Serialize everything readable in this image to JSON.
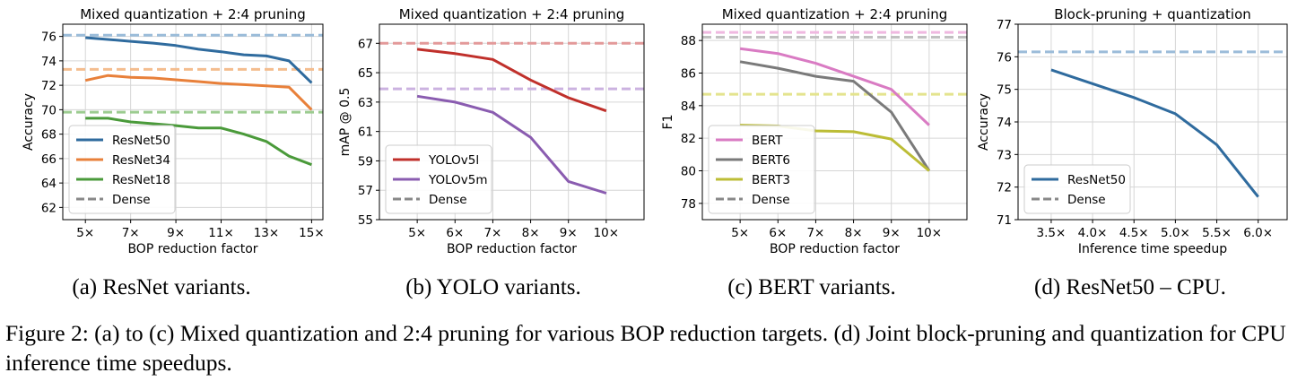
{
  "chart_data": [
    {
      "type": "line",
      "title": "Mixed quantization + 2:4 pruning",
      "xlabel": "BOP reduction factor",
      "ylabel": "Accuracy",
      "xlim": [
        4,
        15.5
      ],
      "ylim": [
        61,
        77
      ],
      "xticks": [
        5,
        7,
        9,
        11,
        13,
        15
      ],
      "xtick_labels": [
        "5×",
        "7×",
        "9×",
        "11×",
        "13×",
        "15×"
      ],
      "yticks": [
        62,
        64,
        66,
        68,
        70,
        72,
        74,
        76
      ],
      "ytick_labels": [
        "62",
        "64",
        "66",
        "68",
        "70",
        "72",
        "74",
        "76"
      ],
      "grid": true,
      "legend_position": "lower-left",
      "series": [
        {
          "name": "ResNet50",
          "color": "#2f6b9e",
          "x": [
            5,
            6,
            7,
            8,
            9,
            10,
            11,
            12,
            13,
            14,
            15
          ],
          "values": [
            75.9,
            75.75,
            75.6,
            75.45,
            75.25,
            74.95,
            74.75,
            74.5,
            74.4,
            74.0,
            72.2
          ]
        },
        {
          "name": "ResNet34",
          "color": "#e8803a",
          "x": [
            5,
            6,
            7,
            8,
            9,
            10,
            11,
            12,
            13,
            14,
            15
          ],
          "values": [
            72.4,
            72.8,
            72.65,
            72.6,
            72.45,
            72.3,
            72.15,
            72.05,
            71.95,
            71.85,
            70.0
          ]
        },
        {
          "name": "ResNet18",
          "color": "#4a9a3a",
          "x": [
            5,
            6,
            7,
            8,
            9,
            10,
            11,
            12,
            13,
            14,
            15
          ],
          "values": [
            69.3,
            69.3,
            69.0,
            68.85,
            68.7,
            68.5,
            68.5,
            68.0,
            67.4,
            66.2,
            65.5
          ]
        }
      ],
      "dense_lines": [
        {
          "value": 76.1,
          "color": "#9bbcd9"
        },
        {
          "value": 73.3,
          "color": "#f4bd8e"
        },
        {
          "value": 69.8,
          "color": "#9ccc90"
        }
      ],
      "dense_legend": {
        "name": "Dense",
        "color": "#888888"
      }
    },
    {
      "type": "line",
      "title": "Mixed quantization + 2:4 pruning",
      "xlabel": "BOP reduction factor",
      "ylabel": "mAP @ 0.5",
      "xlim": [
        4,
        11
      ],
      "ylim": [
        55,
        68.3
      ],
      "xticks": [
        5,
        6,
        7,
        8,
        9,
        10
      ],
      "xtick_labels": [
        "5×",
        "6×",
        "7×",
        "8×",
        "9×",
        "10×"
      ],
      "yticks": [
        55,
        57,
        59,
        61,
        63,
        65,
        67
      ],
      "ytick_labels": [
        "55",
        "57",
        "59",
        "61",
        "63",
        "65",
        "67"
      ],
      "grid": true,
      "legend_position": "lower-left",
      "series": [
        {
          "name": "YOLOv5l",
          "color": "#c0302b",
          "x": [
            5,
            6,
            7,
            8,
            9,
            10
          ],
          "values": [
            66.6,
            66.3,
            65.9,
            64.5,
            63.3,
            62.4
          ]
        },
        {
          "name": "YOLOv5m",
          "color": "#8a5cb0",
          "x": [
            5,
            6,
            7,
            8,
            9,
            10
          ],
          "values": [
            63.4,
            63.0,
            62.3,
            60.6,
            57.6,
            56.8
          ]
        }
      ],
      "dense_lines": [
        {
          "value": 67.0,
          "color": "#e39a9a"
        },
        {
          "value": 63.9,
          "color": "#cbb2e0"
        }
      ],
      "dense_legend": {
        "name": "Dense",
        "color": "#888888"
      }
    },
    {
      "type": "line",
      "title": "Mixed quantization + 2:4 pruning",
      "xlabel": "BOP reduction factor",
      "ylabel": "F1",
      "xlim": [
        4,
        11
      ],
      "ylim": [
        77,
        89
      ],
      "xticks": [
        5,
        6,
        7,
        8,
        9,
        10
      ],
      "xtick_labels": [
        "5×",
        "6×",
        "7×",
        "8×",
        "9×",
        "10×"
      ],
      "yticks": [
        78,
        80,
        82,
        84,
        86,
        88
      ],
      "ytick_labels": [
        "78",
        "80",
        "82",
        "84",
        "86",
        "88"
      ],
      "grid": true,
      "legend_position": "lower-left",
      "series": [
        {
          "name": "BERT",
          "color": "#d97bc3",
          "x": [
            5,
            6,
            7,
            8,
            9,
            10
          ],
          "values": [
            87.5,
            87.2,
            86.6,
            85.8,
            85.0,
            82.8
          ]
        },
        {
          "name": "BERT6",
          "color": "#7a7a7a",
          "x": [
            5,
            6,
            7,
            8,
            9,
            10
          ],
          "values": [
            86.7,
            86.3,
            85.8,
            85.5,
            83.6,
            80.0
          ]
        },
        {
          "name": "BERT3",
          "color": "#bcbd36",
          "x": [
            5,
            6,
            7,
            8,
            9,
            10
          ],
          "values": [
            82.8,
            82.75,
            82.45,
            82.4,
            81.95,
            80.0
          ]
        }
      ],
      "dense_lines": [
        {
          "value": 88.5,
          "color": "#efb8e0"
        },
        {
          "value": 88.2,
          "color": "#c0c0c0"
        },
        {
          "value": 84.7,
          "color": "#e4e48e"
        }
      ],
      "dense_legend": {
        "name": "Dense",
        "color": "#888888"
      }
    },
    {
      "type": "line",
      "title": "Block-pruning + quantization",
      "xlabel": "Inference time speedup",
      "ylabel": "Accuracy",
      "xlim": [
        3.1,
        6.35
      ],
      "ylim": [
        71,
        77
      ],
      "xticks": [
        3.5,
        4.0,
        4.5,
        5.0,
        5.5,
        6.0
      ],
      "xtick_labels": [
        "3.5×",
        "4.0×",
        "4.5×",
        "5.0×",
        "5.5×",
        "6.0×"
      ],
      "yticks": [
        71,
        72,
        73,
        74,
        75,
        76,
        77
      ],
      "ytick_labels": [
        "71",
        "72",
        "73",
        "74",
        "75",
        "76",
        "77"
      ],
      "grid": true,
      "legend_position": "lower-left",
      "series": [
        {
          "name": "ResNet50",
          "color": "#2f6b9e",
          "x": [
            3.5,
            4.5,
            5.0,
            5.5,
            6.0
          ],
          "values": [
            75.6,
            74.75,
            74.25,
            73.3,
            71.7
          ]
        }
      ],
      "dense_lines": [
        {
          "value": 76.15,
          "color": "#9bbcd9"
        }
      ],
      "dense_legend": {
        "name": "Dense",
        "color": "#888888"
      }
    }
  ],
  "subcaptions": [
    "(a) ResNet variants.",
    "(b) YOLO variants.",
    "(c) BERT variants.",
    "(d) ResNet50 – CPU."
  ],
  "caption": "Figure 2: (a) to (c) Mixed quantization and 2:4 pruning for various BOP reduction targets. (d) Joint block-pruning and quantization for CPU inference time speedups."
}
